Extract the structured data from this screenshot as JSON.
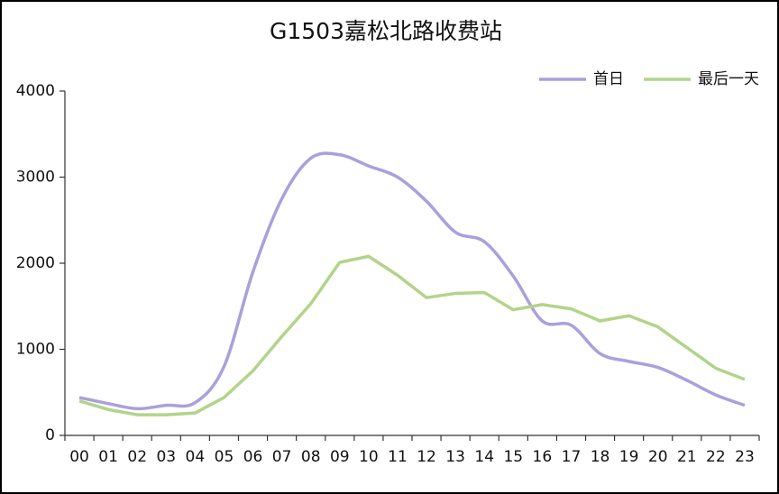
{
  "chart_data": {
    "type": "line",
    "title": "G1503嘉松北路收费站",
    "categories": [
      "00",
      "01",
      "02",
      "03",
      "04",
      "05",
      "06",
      "07",
      "08",
      "09",
      "10",
      "11",
      "12",
      "13",
      "14",
      "15",
      "16",
      "17",
      "18",
      "19",
      "20",
      "21",
      "22",
      "23"
    ],
    "series": [
      {
        "name": "首日",
        "color": "#a9a0dc",
        "smooth": true,
        "values": [
          440,
          370,
          310,
          350,
          380,
          800,
          1900,
          2750,
          3220,
          3260,
          3130,
          3000,
          2720,
          2360,
          2250,
          1850,
          1330,
          1280,
          950,
          860,
          790,
          640,
          470,
          350
        ]
      },
      {
        "name": "最后一天",
        "color": "#b2d48a",
        "smooth": false,
        "values": [
          400,
          300,
          240,
          240,
          260,
          440,
          750,
          1150,
          1530,
          2010,
          2080,
          1860,
          1600,
          1650,
          1660,
          1460,
          1520,
          1470,
          1330,
          1390,
          1260,
          1020,
          780,
          650
        ]
      }
    ],
    "ylim": [
      0,
      4000
    ],
    "yticks": [
      0,
      1000,
      2000,
      3000,
      4000
    ],
    "grid": false,
    "legend": "top-right"
  }
}
